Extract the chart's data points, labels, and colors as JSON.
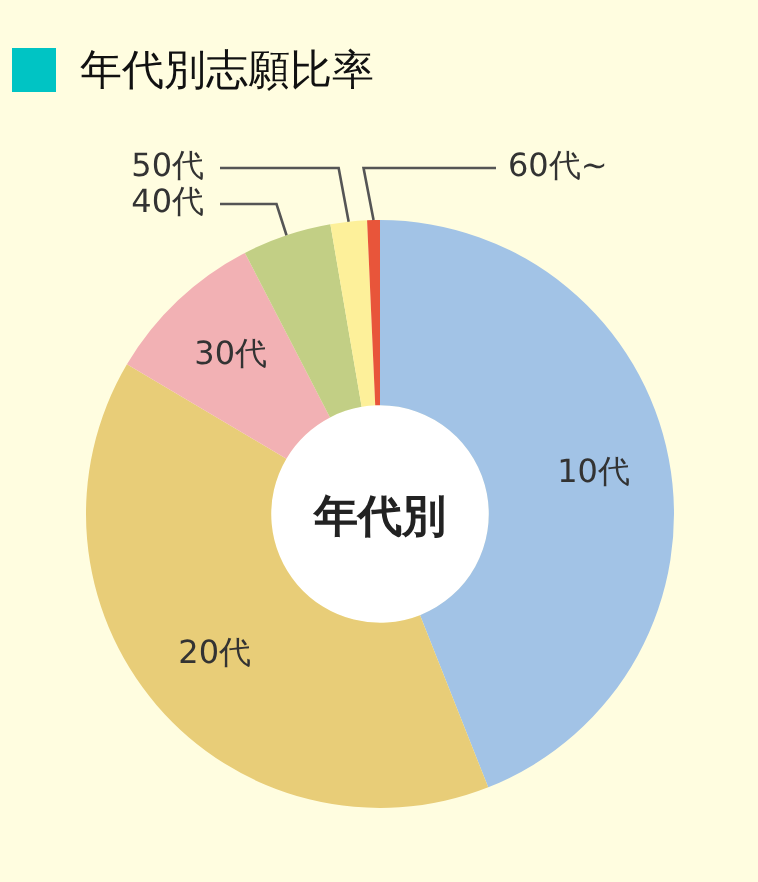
{
  "chart_data": {
    "type": "donut",
    "title": "年代別志願比率",
    "categories": [
      "10代",
      "20代",
      "30代",
      "40代",
      "50代",
      "60代~"
    ],
    "values": [
      44.0,
      39.5,
      8.9,
      4.9,
      2.0,
      0.7
    ],
    "colors": [
      "#a2c3e6",
      "#e8cd78",
      "#f2b1b4",
      "#c2cf85",
      "#fdf09a",
      "#e8553a"
    ],
    "annotations": [
      "年代別"
    ],
    "legend": false
  }
}
